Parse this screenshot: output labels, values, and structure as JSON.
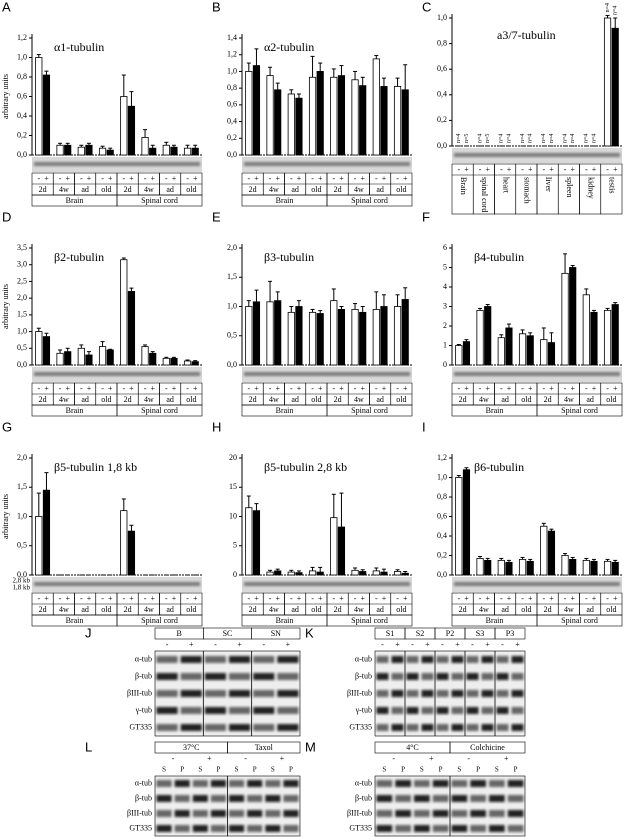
{
  "chart_data": [
    {
      "type": "bar",
      "panel": "A",
      "title": "α1-tubulin",
      "ylabel": "arbitrary units",
      "categories": [
        "2d",
        "4w",
        "ad",
        "old",
        "2d",
        "4w",
        "ad",
        "old"
      ],
      "groups": [
        "Brain",
        "Spinal cord"
      ],
      "series": [
        {
          "name": "-",
          "color": "#ffffff",
          "values": [
            1.0,
            0.1,
            0.08,
            0.07,
            0.6,
            0.18,
            0.1,
            0.07
          ],
          "errors": [
            0.03,
            0.02,
            0.02,
            0.02,
            0.22,
            0.08,
            0.03,
            0.03
          ]
        },
        {
          "name": "+",
          "color": "#000000",
          "values": [
            0.82,
            0.1,
            0.1,
            0.05,
            0.5,
            0.07,
            0.08,
            0.07
          ],
          "errors": [
            0.04,
            0.02,
            0.02,
            0.02,
            0.15,
            0.03,
            0.02,
            0.03
          ]
        }
      ],
      "ylim": [
        0,
        1.2
      ],
      "yticks": [
        {
          "value": 0,
          "label": "0,0"
        },
        {
          "value": 0.2,
          "label": "0,2"
        },
        {
          "value": 0.4,
          "label": "0,4"
        },
        {
          "value": 0.6,
          "label": "0,6"
        },
        {
          "value": 0.8,
          "label": "0,8"
        },
        {
          "value": 1.0,
          "label": "1,0"
        },
        {
          "value": 1.2,
          "label": "1,2"
        }
      ]
    },
    {
      "type": "bar",
      "panel": "B",
      "title": "α2-tubulin",
      "categories": [
        "2d",
        "4w",
        "ad",
        "old",
        "2d",
        "4w",
        "ad",
        "old"
      ],
      "groups": [
        "Brain",
        "Spinal cord"
      ],
      "series": [
        {
          "name": "-",
          "color": "#ffffff",
          "values": [
            1.0,
            0.95,
            0.73,
            0.93,
            0.93,
            0.9,
            1.15,
            0.82
          ],
          "errors": [
            0.1,
            0.1,
            0.05,
            0.25,
            0.1,
            0.1,
            0.04,
            0.1
          ]
        },
        {
          "name": "+",
          "color": "#000000",
          "values": [
            1.07,
            0.78,
            0.68,
            1.0,
            0.95,
            0.83,
            0.82,
            0.78
          ],
          "errors": [
            0.2,
            0.08,
            0.05,
            0.1,
            0.12,
            0.1,
            0.1,
            0.3
          ]
        }
      ],
      "ylim": [
        0,
        1.4
      ],
      "yticks": [
        {
          "value": 0,
          "label": "0,0"
        },
        {
          "value": 0.2,
          "label": "0,2"
        },
        {
          "value": 0.4,
          "label": "0,4"
        },
        {
          "value": 0.6,
          "label": "0,6"
        },
        {
          "value": 0.8,
          "label": "0,8"
        },
        {
          "value": 1.0,
          "label": "1,0"
        },
        {
          "value": 1.2,
          "label": "1,2"
        },
        {
          "value": 1.4,
          "label": "1,4"
        }
      ]
    },
    {
      "type": "bar",
      "panel": "C",
      "title": "a3/7-tubulin",
      "categories": [
        "Brain",
        "spinal cord",
        "heart",
        "stomach",
        "liver",
        "spleen",
        "kidney",
        "testis"
      ],
      "n_labels": [
        "n=4",
        "n=5",
        "n=4",
        "n=5",
        "n=4",
        "n=4",
        "n=4",
        "n=4",
        "n=4",
        "n=4",
        "n=4",
        "n=4",
        "n=4",
        "n=4",
        "n=4",
        "n=4"
      ],
      "series": [
        {
          "name": "-",
          "color": "#ffffff",
          "values": [
            0,
            0,
            0,
            0,
            0,
            0,
            0,
            1.0
          ],
          "errors": [
            0,
            0,
            0,
            0,
            0,
            0,
            0,
            0.02
          ]
        },
        {
          "name": "+",
          "color": "#000000",
          "values": [
            0,
            0,
            0,
            0,
            0,
            0,
            0,
            0.92
          ],
          "errors": [
            0,
            0,
            0,
            0,
            0,
            0,
            0,
            0.08
          ]
        }
      ],
      "ylim": [
        0,
        1.0
      ],
      "yticks": [
        {
          "value": 0,
          "label": "0,0"
        },
        {
          "value": 0.2,
          "label": "0,2"
        },
        {
          "value": 0.4,
          "label": "0,4"
        },
        {
          "value": 0.6,
          "label": "0,6"
        },
        {
          "value": 0.8,
          "label": "0,8"
        },
        {
          "value": 1.0,
          "label": "1,0"
        }
      ]
    },
    {
      "type": "bar",
      "panel": "D",
      "title": "β2-tubulin",
      "ylabel": "arbitrary units",
      "categories": [
        "2d",
        "4w",
        "ad",
        "old",
        "2d",
        "4w",
        "ad",
        "old"
      ],
      "groups": [
        "Brain",
        "Spinal cord"
      ],
      "series": [
        {
          "name": "-",
          "color": "#ffffff",
          "values": [
            1.0,
            0.35,
            0.5,
            0.55,
            3.15,
            0.55,
            0.2,
            0.12
          ],
          "errors": [
            0.1,
            0.1,
            0.1,
            0.15,
            0.05,
            0.05,
            0.03,
            0.03
          ]
        },
        {
          "name": "+",
          "color": "#000000",
          "values": [
            0.85,
            0.4,
            0.3,
            0.45,
            2.2,
            0.35,
            0.2,
            0.1
          ],
          "errors": [
            0.1,
            0.1,
            0.1,
            0.02,
            0.1,
            0.05,
            0.03,
            0.03
          ]
        }
      ],
      "ylim": [
        0,
        3.5
      ],
      "yticks": [
        {
          "value": 0,
          "label": "0,0"
        },
        {
          "value": 0.5,
          "label": "0,5"
        },
        {
          "value": 1.0,
          "label": "1,0"
        },
        {
          "value": 1.5,
          "label": "1,5"
        },
        {
          "value": 2.0,
          "label": "2,0"
        },
        {
          "value": 2.5,
          "label": "2,5"
        },
        {
          "value": 3.0,
          "label": "3,0"
        },
        {
          "value": 3.5,
          "label": "3,5"
        }
      ]
    },
    {
      "type": "bar",
      "panel": "E",
      "title": "β3-tubulin",
      "categories": [
        "2d",
        "4w",
        "ad",
        "old",
        "2d",
        "4w",
        "ad",
        "old"
      ],
      "groups": [
        "Brain",
        "Spinal cord"
      ],
      "series": [
        {
          "name": "-",
          "color": "#ffffff",
          "values": [
            1.0,
            1.08,
            0.9,
            0.9,
            1.1,
            0.95,
            0.95,
            1.0
          ],
          "errors": [
            0.1,
            0.35,
            0.1,
            0.05,
            0.2,
            0.1,
            0.3,
            0.2
          ]
        },
        {
          "name": "+",
          "color": "#000000",
          "values": [
            1.08,
            1.1,
            1.0,
            0.88,
            0.95,
            0.9,
            1.0,
            1.12
          ],
          "errors": [
            0.2,
            0.15,
            0.1,
            0.05,
            0.05,
            0.1,
            0.2,
            0.2
          ]
        }
      ],
      "ylim": [
        0,
        2.0
      ],
      "yticks": [
        {
          "value": 0,
          "label": "0,0"
        },
        {
          "value": 0.5,
          "label": "0,5"
        },
        {
          "value": 1.0,
          "label": "1,0"
        },
        {
          "value": 1.5,
          "label": "1,5"
        },
        {
          "value": 2.0,
          "label": "2,0"
        }
      ]
    },
    {
      "type": "bar",
      "panel": "F",
      "title": "β4-tubulin",
      "categories": [
        "2d",
        "4w",
        "ad",
        "old",
        "2d",
        "4w",
        "ad",
        "old"
      ],
      "groups": [
        "Brain",
        "Spinal cord"
      ],
      "series": [
        {
          "name": "-",
          "color": "#ffffff",
          "values": [
            1.0,
            2.8,
            1.4,
            1.6,
            1.3,
            4.7,
            3.6,
            2.8
          ],
          "errors": [
            0.05,
            0.1,
            0.15,
            0.2,
            0.6,
            1.0,
            0.3,
            0.1
          ]
        },
        {
          "name": "+",
          "color": "#000000",
          "values": [
            1.2,
            3.0,
            1.9,
            1.5,
            1.15,
            5.0,
            2.7,
            3.1
          ],
          "errors": [
            0.1,
            0.1,
            0.2,
            0.15,
            0.5,
            0.1,
            0.1,
            0.1
          ]
        }
      ],
      "ylim": [
        0,
        6
      ],
      "yticks": [
        0,
        1,
        2,
        3,
        4,
        5,
        6
      ]
    },
    {
      "type": "bar",
      "panel": "G",
      "title": "β5-tubulin 1,8 kb",
      "ylabel": "arbitrary units",
      "band_labels": [
        "2,8 kb",
        "1,8 kb"
      ],
      "categories": [
        "2d",
        "4w",
        "ad",
        "old",
        "2d",
        "4w",
        "ad",
        "old"
      ],
      "groups": [
        "Brain",
        "Spinal cord"
      ],
      "series": [
        {
          "name": "-",
          "color": "#ffffff",
          "values": [
            1.0,
            0,
            0,
            0,
            1.1,
            0,
            0,
            0
          ],
          "errors": [
            0.4,
            0,
            0,
            0,
            0.2,
            0,
            0,
            0
          ]
        },
        {
          "name": "+",
          "color": "#000000",
          "values": [
            1.45,
            0,
            0,
            0,
            0.75,
            0,
            0,
            0
          ],
          "errors": [
            0.3,
            0,
            0,
            0,
            0.1,
            0,
            0,
            0
          ]
        }
      ],
      "ylim": [
        0,
        2.0
      ],
      "yticks": [
        {
          "value": 0,
          "label": "0,0"
        },
        {
          "value": 0.5,
          "label": "0,5"
        },
        {
          "value": 1.0,
          "label": "1,0"
        },
        {
          "value": 1.5,
          "label": "1,5"
        },
        {
          "value": 2.0,
          "label": "2,0"
        }
      ]
    },
    {
      "type": "bar",
      "panel": "H",
      "title": "β5-tubulin 2,8 kb",
      "categories": [
        "2d",
        "4w",
        "ad",
        "old",
        "2d",
        "4w",
        "ad",
        "old"
      ],
      "groups": [
        "Brain",
        "Spinal cord"
      ],
      "series": [
        {
          "name": "-",
          "color": "#ffffff",
          "values": [
            11.5,
            0.5,
            0.5,
            0.7,
            9.8,
            0.8,
            0.7,
            0.6
          ],
          "errors": [
            2.0,
            0.3,
            0.3,
            0.6,
            4.0,
            0.4,
            0.5,
            0.3
          ]
        },
        {
          "name": "+",
          "color": "#000000",
          "values": [
            11.0,
            0.7,
            0.4,
            0.5,
            8.2,
            0.6,
            0.5,
            0.3
          ],
          "errors": [
            1.2,
            0.3,
            0.3,
            0.8,
            5.8,
            0.3,
            0.5,
            0.3
          ]
        }
      ],
      "ylim": [
        0,
        20
      ],
      "yticks": [
        0,
        5,
        10,
        15,
        20
      ]
    },
    {
      "type": "bar",
      "panel": "I",
      "title": "β6-tubulin",
      "categories": [
        "2d",
        "4w",
        "ad",
        "old",
        "2d",
        "4w",
        "ad",
        "old"
      ],
      "groups": [
        "Brain",
        "Spinal cord"
      ],
      "series": [
        {
          "name": "-",
          "color": "#ffffff",
          "values": [
            1.0,
            0.17,
            0.15,
            0.16,
            0.5,
            0.2,
            0.15,
            0.14
          ],
          "errors": [
            0.02,
            0.02,
            0.02,
            0.02,
            0.03,
            0.02,
            0.02,
            0.02
          ]
        },
        {
          "name": "+",
          "color": "#000000",
          "values": [
            1.08,
            0.15,
            0.13,
            0.14,
            0.45,
            0.16,
            0.14,
            0.13
          ],
          "errors": [
            0.02,
            0.02,
            0.02,
            0.02,
            0.02,
            0.02,
            0.02,
            0.02
          ]
        }
      ],
      "ylim": [
        0,
        1.2
      ],
      "yticks": [
        {
          "value": 0,
          "label": "0,0"
        },
        {
          "value": 0.2,
          "label": "0,2"
        },
        {
          "value": 0.4,
          "label": "0,4"
        },
        {
          "value": 0.6,
          "label": "0,6"
        },
        {
          "value": 0.8,
          "label": "0,8"
        },
        {
          "value": 1.0,
          "label": "1,0"
        },
        {
          "value": 1.2,
          "label": "1,2"
        }
      ]
    }
  ],
  "blots": [
    {
      "panel": "J",
      "groups": [
        "B",
        "SC",
        "SN"
      ],
      "signs": [
        "-",
        "+"
      ],
      "rows": [
        "α-tub",
        "β-tub",
        "βIII-tub",
        "γ-tub",
        "GT335"
      ]
    },
    {
      "panel": "K",
      "groups": [
        "S1",
        "S2",
        "P2",
        "S3",
        "P3"
      ],
      "signs": [
        "-",
        "+"
      ],
      "rows": [
        "α-tub",
        "β-tub",
        "βIII-tub",
        "γ-tub",
        "GT335"
      ]
    },
    {
      "panel": "L",
      "groups": [
        "37°C",
        "Taxol"
      ],
      "signs": [
        "-",
        "+"
      ],
      "fractions": [
        "S",
        "P"
      ],
      "rows": [
        "α-tub",
        "β-tub",
        "βIII-tub",
        "GT335"
      ]
    },
    {
      "panel": "M",
      "groups": [
        "4°C",
        "Colchicine"
      ],
      "signs": [
        "-",
        "+"
      ],
      "fractions": [
        "S",
        "P"
      ],
      "rows": [
        "α-tub",
        "β-tub",
        "βIII-tub",
        "GT335"
      ]
    }
  ]
}
